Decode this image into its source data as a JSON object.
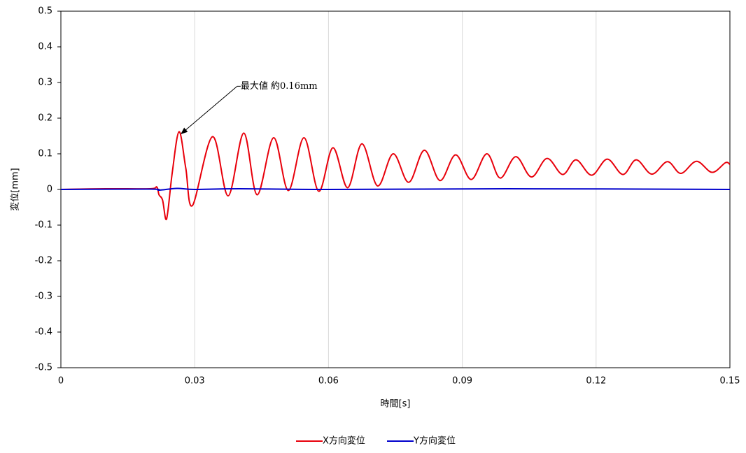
{
  "chart_data": {
    "type": "line",
    "x_label": "時間[s]",
    "y_label": "変位[mm]",
    "xlim": [
      0,
      0.15
    ],
    "xticks": [
      0,
      0.03,
      0.06,
      0.09,
      0.12,
      0.15
    ],
    "ylim": [
      -0.5,
      0.5
    ],
    "yticks": [
      0.5,
      0.4,
      0.3,
      0.2,
      0.1,
      0,
      -0.1,
      -0.2,
      -0.3,
      -0.4,
      -0.5
    ],
    "grid": "x",
    "legend": "bottom",
    "annotation": {
      "text": "最大値 約0.16mm",
      "x": 0.0265,
      "y": 0.162
    },
    "series": [
      {
        "name": "X方向変位",
        "color": "#e8000b",
        "x": [
          0,
          0.01,
          0.02,
          0.0215,
          0.022,
          0.0228,
          0.0235,
          0.024,
          0.025,
          0.0265,
          0.028,
          0.0295,
          0.034,
          0.0375,
          0.041,
          0.044,
          0.0477,
          0.051,
          0.0545,
          0.0578,
          0.061,
          0.0643,
          0.0675,
          0.071,
          0.0745,
          0.078,
          0.0815,
          0.085,
          0.0885,
          0.092,
          0.0955,
          0.0985,
          0.102,
          0.1055,
          0.109,
          0.1125,
          0.1155,
          0.119,
          0.1225,
          0.126,
          0.129,
          0.1325,
          0.136,
          0.139,
          0.1425,
          0.146,
          0.149,
          0.15
        ],
        "values": [
          0,
          0.002,
          0.002,
          0.007,
          -0.015,
          -0.03,
          -0.083,
          -0.06,
          0.05,
          0.162,
          0.06,
          -0.045,
          0.148,
          -0.018,
          0.158,
          -0.015,
          0.145,
          -0.003,
          0.145,
          -0.005,
          0.117,
          0.005,
          0.128,
          0.01,
          0.1,
          0.02,
          0.11,
          0.025,
          0.097,
          0.028,
          0.1,
          0.032,
          0.092,
          0.035,
          0.087,
          0.042,
          0.083,
          0.04,
          0.085,
          0.042,
          0.083,
          0.043,
          0.078,
          0.045,
          0.079,
          0.048,
          0.075,
          0.07
        ]
      },
      {
        "name": "Y方向変位",
        "color": "#0000cc",
        "x": [
          0,
          0.02,
          0.022,
          0.026,
          0.03,
          0.04,
          0.06,
          0.1,
          0.15
        ],
        "values": [
          0,
          0.001,
          -0.002,
          0.003,
          0,
          0.002,
          0,
          0.002,
          0
        ]
      }
    ]
  }
}
